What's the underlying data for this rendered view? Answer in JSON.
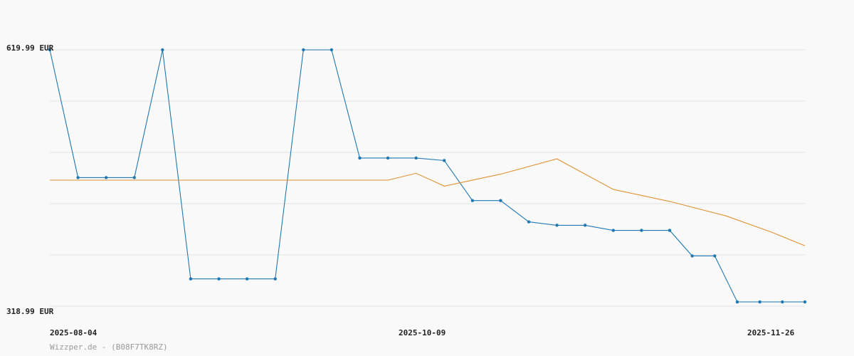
{
  "chart_data": {
    "type": "line",
    "y_ticks": [
      "619.99 EUR",
      "318.99 EUR"
    ],
    "ylim": [
      318.99,
      619.99
    ],
    "x_tick_labels": [
      "2025-08-04",
      "2025-10-09",
      "2025-11-26"
    ],
    "credit": "Wizzper.de - (B08F7TK8RZ)",
    "grid": true,
    "series": [
      {
        "color": "#1f78b4",
        "markers": true,
        "x": [
          "2025-08-04",
          "2025-08-09",
          "2025-08-14",
          "2025-08-19",
          "2025-08-24",
          "2025-08-29",
          "2025-09-03",
          "2025-09-08",
          "2025-09-13",
          "2025-09-18",
          "2025-09-23",
          "2025-09-28",
          "2025-10-03",
          "2025-10-08",
          "2025-10-13",
          "2025-10-18",
          "2025-10-23",
          "2025-10-28",
          "2025-11-02",
          "2025-11-07",
          "2025-11-12",
          "2025-11-17",
          "2025-11-22",
          "2025-11-26",
          "2025-11-30",
          "2025-12-04",
          "2025-12-08",
          "2025-12-12",
          "2025-12-16"
        ],
        "values": [
          619.99,
          469.99,
          469.99,
          469.99,
          619.99,
          350.99,
          350.99,
          350.99,
          350.99,
          619.99,
          619.99,
          492.99,
          492.99,
          492.99,
          489.99,
          442.99,
          442.99,
          417.99,
          413.99,
          413.99,
          407.99,
          407.99,
          407.99,
          377.99,
          377.99,
          323.99,
          323.99,
          323.99,
          323.99
        ]
      },
      {
        "color": "#e0912f",
        "markers": false,
        "x": [
          "2025-08-04",
          "2025-10-03",
          "2025-10-08",
          "2025-10-13",
          "2025-10-23",
          "2025-11-02",
          "2025-11-12",
          "2025-11-22",
          "2025-12-02",
          "2025-12-10",
          "2025-12-16"
        ],
        "values": [
          466.99,
          466.99,
          474.99,
          459.99,
          473.99,
          491.99,
          455.99,
          441.99,
          424.99,
          405.99,
          389.99
        ]
      }
    ]
  }
}
